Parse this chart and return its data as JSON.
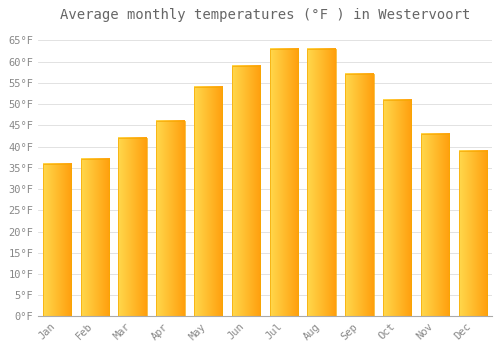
{
  "title": "Average monthly temperatures (°F ) in Westervoort",
  "months": [
    "Jan",
    "Feb",
    "Mar",
    "Apr",
    "May",
    "Jun",
    "Jul",
    "Aug",
    "Sep",
    "Oct",
    "Nov",
    "Dec"
  ],
  "values": [
    36,
    37,
    42,
    46,
    54,
    59,
    63,
    63,
    57,
    51,
    43,
    39
  ],
  "bar_color_left": "#FFD966",
  "bar_color_right": "#FFA500",
  "bar_color_face": "#FFBF00",
  "bar_color_edge": "#F5A800",
  "background_color": "#FFFFFF",
  "grid_color": "#DDDDDD",
  "text_color": "#888888",
  "title_color": "#666666",
  "ylim": [
    0,
    68
  ],
  "yticks": [
    0,
    5,
    10,
    15,
    20,
    25,
    30,
    35,
    40,
    45,
    50,
    55,
    60,
    65
  ],
  "title_fontsize": 10,
  "tick_fontsize": 7.5,
  "bar_width": 0.75
}
